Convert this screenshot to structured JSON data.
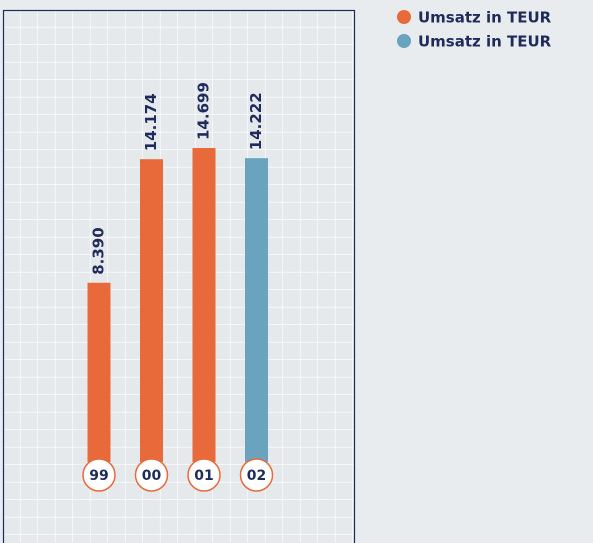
{
  "chart_data": {
    "type": "bar",
    "categories": [
      "99",
      "00",
      "01",
      "02"
    ],
    "series": [
      {
        "name": "Umsatz in TEUR",
        "color": "#e8693a",
        "values": [
          8390,
          14174,
          14699,
          null
        ],
        "value_labels": [
          "8.390",
          "14.174",
          "14.699",
          null
        ]
      },
      {
        "name": "Umsatz in TEUR",
        "color": "#6aa3bd",
        "values": [
          null,
          null,
          null,
          14222
        ],
        "value_labels": [
          null,
          null,
          null,
          "14.222"
        ]
      }
    ]
  }
}
